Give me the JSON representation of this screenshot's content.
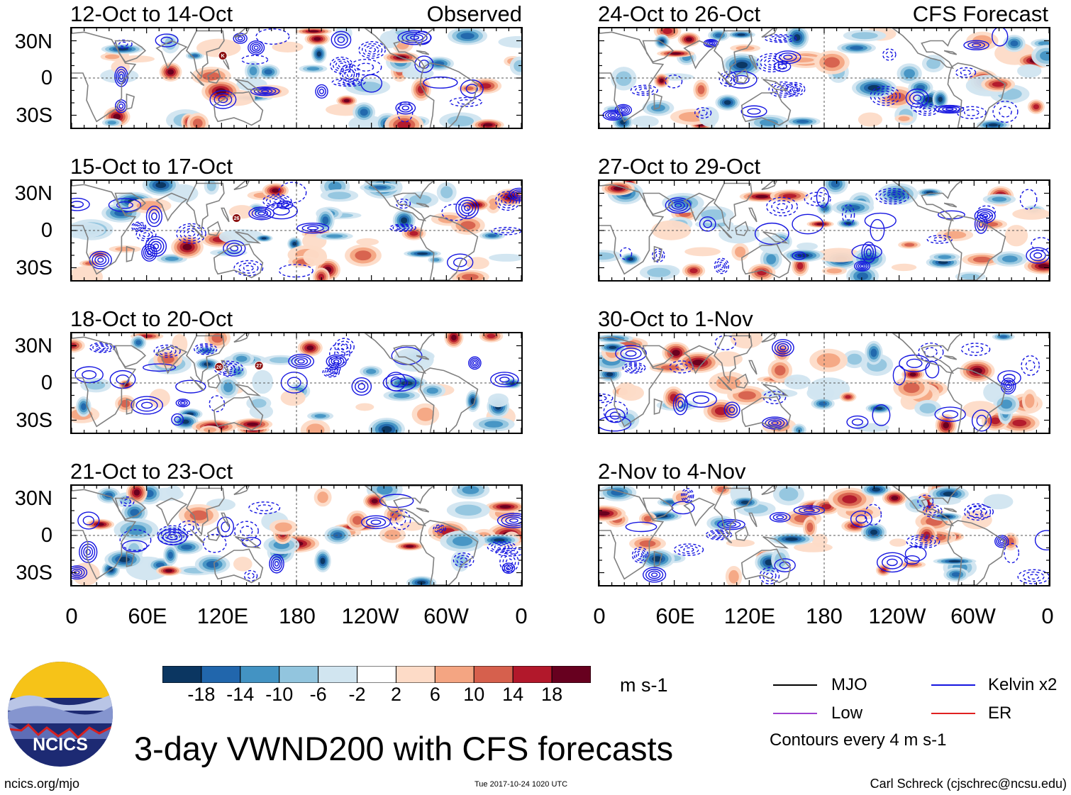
{
  "chart_data": {
    "type": "heatmap",
    "title": "3-day VWND200 with CFS forecasts",
    "variable": "VWND200",
    "units": "m s-1",
    "lat_ticks": [
      "30N",
      "0",
      "30S"
    ],
    "lon_ticks": [
      "0",
      "60E",
      "120E",
      "180",
      "120W",
      "60W",
      "0"
    ],
    "column_labels": {
      "left": "Observed",
      "right": "CFS Forecast"
    },
    "panels": [
      {
        "period": "12-Oct to 14-Oct",
        "kind": "observed",
        "storms": [
          {
            "label": "K",
            "lon": 121,
            "lat": 18
          }
        ]
      },
      {
        "period": "15-Oct to 17-Oct",
        "kind": "observed",
        "storms": [
          {
            "label": "26",
            "lon": 132,
            "lat": 10
          }
        ]
      },
      {
        "period": "18-Oct to 20-Oct",
        "kind": "observed",
        "storms": [
          {
            "label": "26",
            "lon": 118,
            "lat": 13
          },
          {
            "label": "27",
            "lon": 150,
            "lat": 14
          }
        ]
      },
      {
        "period": "21-Oct to 23-Oct",
        "kind": "observed",
        "storms": []
      },
      {
        "period": "24-Oct to 26-Oct",
        "kind": "forecast",
        "storms": []
      },
      {
        "period": "27-Oct to 29-Oct",
        "kind": "forecast",
        "storms": []
      },
      {
        "period": "30-Oct to 1-Nov",
        "kind": "forecast",
        "storms": []
      },
      {
        "period": "2-Nov to 4-Nov",
        "kind": "forecast",
        "storms": []
      }
    ],
    "colorbar": {
      "tick_labels": [
        "-18",
        "-14",
        "-10",
        "-6",
        "-2",
        "2",
        "6",
        "10",
        "14",
        "18"
      ],
      "levels": [
        -18,
        -14,
        -10,
        -6,
        -2,
        2,
        6,
        10,
        14,
        18
      ],
      "colors": [
        "#0b3661",
        "#2166ac",
        "#4393c3",
        "#92c5de",
        "#d1e5f0",
        "#ffffff",
        "#fddbc7",
        "#f4a582",
        "#d6604d",
        "#b2182b",
        "#67001f"
      ],
      "units": "m s-1"
    },
    "legend": {
      "items": [
        {
          "label": "MJO",
          "color": "#000000"
        },
        {
          "label": "Kelvin x2",
          "color": "#1515e0"
        },
        {
          "label": "Low",
          "color": "#a040d0"
        },
        {
          "label": "ER",
          "color": "#e02020"
        }
      ],
      "note": "Contours every 4 m s-1"
    }
  },
  "footer": {
    "url": "ncics.org/mjo",
    "timestamp": "Tue 2017-10-24 1020 UTC",
    "author": "Carl Schreck (cjschrec@ncsu.edu)"
  },
  "logo": {
    "text": "NCICS"
  }
}
